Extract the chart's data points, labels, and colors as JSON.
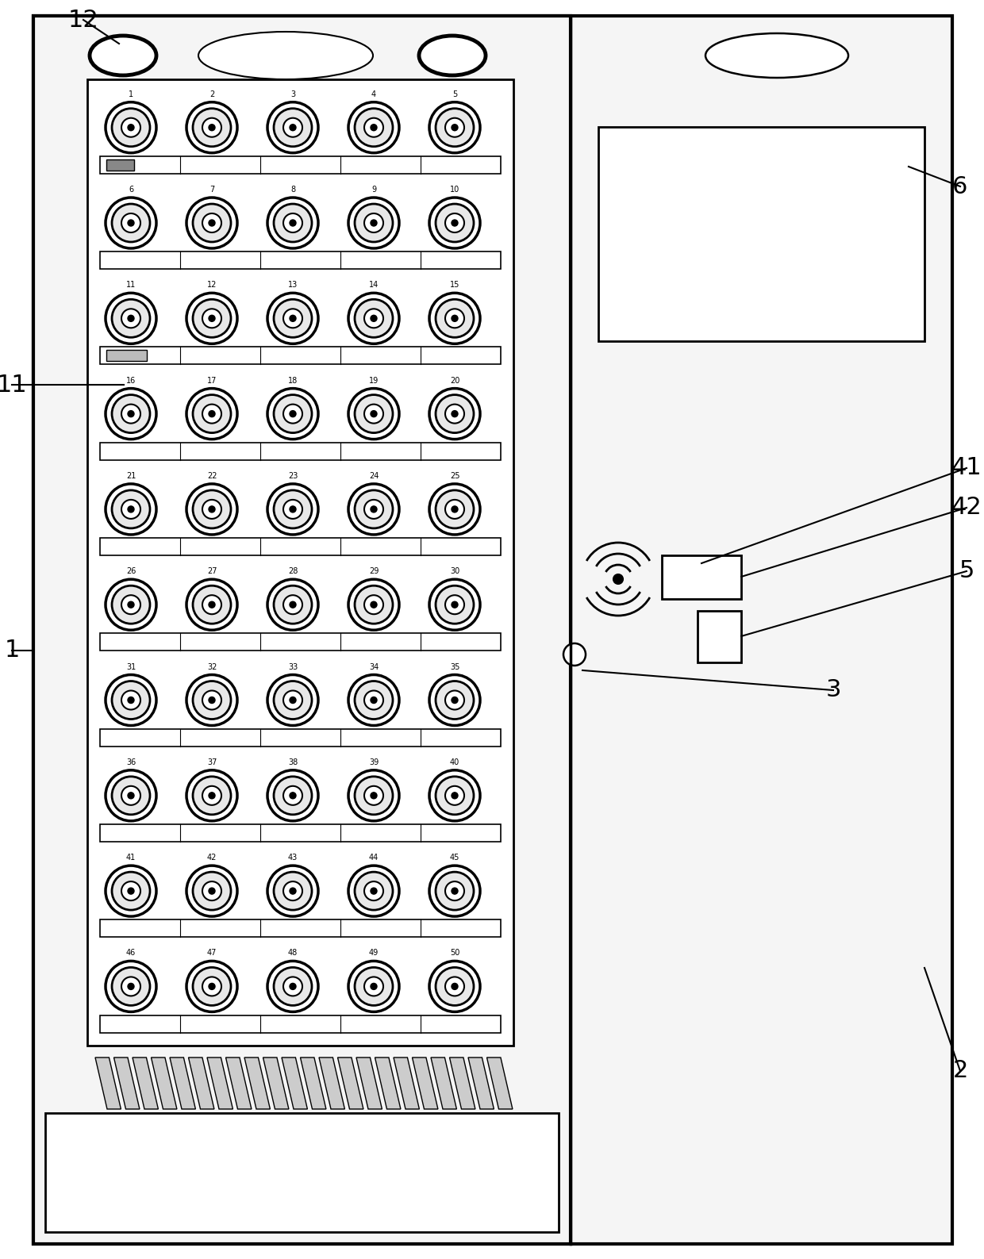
{
  "bg_color": "#ffffff",
  "line_color": "#000000",
  "fig_width": 12.4,
  "fig_height": 15.87,
  "dpi": 100
}
